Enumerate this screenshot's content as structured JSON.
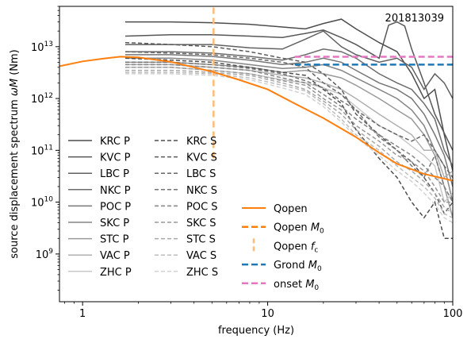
{
  "chart_data": {
    "type": "line",
    "annotation": "201813039",
    "xlabel": "frequency (Hz)",
    "ylabel_main": "source displacement spectrum ",
    "ylabel_omega": "ω",
    "ylabel_M": "M",
    "ylabel_unit": " (Nm)",
    "xscale": "log",
    "yscale": "log",
    "xlim": [
      0.75,
      100
    ],
    "ylim": [
      120000000.0,
      60000000000000.0
    ],
    "xticks": [
      {
        "value": 1,
        "label": "1"
      },
      {
        "value": 10,
        "label": "10"
      },
      {
        "value": 100,
        "label": "100"
      }
    ],
    "yticks": [
      {
        "value": 1000000000.0,
        "base": "10",
        "exp": "9"
      },
      {
        "value": 10000000000.0,
        "base": "10",
        "exp": "10"
      },
      {
        "value": 100000000000.0,
        "base": "10",
        "exp": "11"
      },
      {
        "value": 1000000000000.0,
        "base": "10",
        "exp": "12"
      },
      {
        "value": 10000000000000.0,
        "base": "10",
        "exp": "13"
      }
    ],
    "station_series": [
      {
        "name": "KRC P",
        "color": "#4d4d4d",
        "dash": false,
        "x": [
          1.7,
          3,
          5,
          8,
          12,
          16,
          20,
          25,
          30,
          40,
          50,
          60,
          70,
          80,
          90,
          100
        ],
        "y": [
          30000000000000.0,
          30000000000000.0,
          29000000000000.0,
          27000000000000.0,
          24000000000000.0,
          22000000000000.0,
          28000000000000.0,
          34000000000000.0,
          22000000000000.0,
          12000000000000.0,
          8000000000000.0,
          3000000000000.0,
          1000000000000.0,
          1500000000000.0,
          200000000000.0,
          40000000000.0
        ]
      },
      {
        "name": "KVC P",
        "color": "#575757",
        "dash": false,
        "x": [
          1.7,
          3,
          5,
          8,
          12,
          16,
          20,
          25,
          30,
          40,
          45,
          50,
          55,
          60,
          70,
          80,
          100
        ],
        "y": [
          16000000000000.0,
          17000000000000.0,
          17000000000000.0,
          16000000000000.0,
          15000000000000.0,
          18000000000000.0,
          21000000000000.0,
          15000000000000.0,
          11000000000000.0,
          6000000000000.0,
          26000000000000.0,
          30000000000000.0,
          25000000000000.0,
          9000000000000.0,
          2000000000000.0,
          500000000000.0,
          100000000000.0
        ]
      },
      {
        "name": "LBC P",
        "color": "#616161",
        "dash": false,
        "x": [
          1.7,
          3,
          5,
          8,
          12,
          16,
          20,
          25,
          30,
          40,
          50,
          60,
          70,
          80,
          90,
          100
        ],
        "y": [
          11000000000000.0,
          11000000000000.0,
          11000000000000.0,
          9500000000000.0,
          9000000000000.0,
          14000000000000.0,
          20000000000000.0,
          10000000000000.0,
          7000000000000.0,
          5000000000000.0,
          6000000000000.0,
          4000000000000.0,
          1500000000000.0,
          3000000000000.0,
          2000000000000.0,
          1000000000000.0
        ]
      },
      {
        "name": "NKC P",
        "color": "#6c6c6c",
        "dash": false,
        "x": [
          1.7,
          3,
          5,
          8,
          12,
          16,
          20,
          25,
          30,
          40,
          50,
          60,
          70,
          80,
          90,
          100
        ],
        "y": [
          8000000000000.0,
          8000000000000.0,
          7500000000000.0,
          6500000000000.0,
          5500000000000.0,
          7000000000000.0,
          9000000000000.0,
          8000000000000.0,
          6000000000000.0,
          3000000000000.0,
          2000000000000.0,
          1500000000000.0,
          800000000000.0,
          400000000000.0,
          100000000000.0,
          50000000000.0
        ]
      },
      {
        "name": "POC P",
        "color": "#767676",
        "dash": false,
        "x": [
          1.7,
          3,
          5,
          8,
          12,
          16,
          20,
          25,
          30,
          40,
          50,
          60,
          70,
          80,
          90,
          100
        ],
        "y": [
          7000000000000.0,
          7000000000000.0,
          6500000000000.0,
          5500000000000.0,
          4500000000000.0,
          5000000000000.0,
          6000000000000.0,
          5000000000000.0,
          3500000000000.0,
          2000000000000.0,
          1500000000000.0,
          1000000000000.0,
          500000000000.0,
          200000000000.0,
          80000000000.0,
          20000000000.0
        ]
      },
      {
        "name": "SKC P",
        "color": "#858585",
        "dash": false,
        "x": [
          1.7,
          3,
          5,
          8,
          12,
          16,
          20,
          25,
          30,
          40,
          50,
          60,
          70,
          80,
          90,
          100
        ],
        "y": [
          6000000000000.0,
          6000000000000.0,
          5500000000000.0,
          4500000000000.0,
          3800000000000.0,
          4000000000000.0,
          4500000000000.0,
          3500000000000.0,
          2500000000000.0,
          1500000000000.0,
          1000000000000.0,
          600000000000.0,
          300000000000.0,
          100000000000.0,
          50000000000.0,
          10000000000.0
        ]
      },
      {
        "name": "STC P",
        "color": "#9a9a9a",
        "dash": false,
        "x": [
          1.7,
          3,
          5,
          8,
          12,
          16,
          20,
          25,
          30,
          40,
          50,
          60,
          70,
          80,
          90,
          100
        ],
        "y": [
          5000000000000.0,
          5000000000000.0,
          4500000000000.0,
          4000000000000.0,
          3200000000000.0,
          3500000000000.0,
          3000000000000.0,
          2500000000000.0,
          1800000000000.0,
          1000000000000.0,
          600000000000.0,
          400000000000.0,
          200000000000.0,
          80000000000.0,
          20000000000.0,
          5000000000.0
        ]
      },
      {
        "name": "VAC P",
        "color": "#b0b0b0",
        "dash": false,
        "x": [
          1.7,
          3,
          5,
          8,
          12,
          16,
          20,
          25,
          30,
          40,
          50,
          60,
          70,
          80,
          90,
          100
        ],
        "y": [
          4500000000000.0,
          4500000000000.0,
          4000000000000.0,
          3500000000000.0,
          2800000000000.0,
          2500000000000.0,
          2000000000000.0,
          1500000000000.0,
          1000000000000.0,
          500000000000.0,
          300000000000.0,
          200000000000.0,
          100000000000.0,
          100000000000.0,
          30000000000.0,
          40000000000.0
        ]
      },
      {
        "name": "ZHC P",
        "color": "#c8c8c8",
        "dash": false,
        "x": [
          1.7,
          3,
          5,
          8,
          12,
          16,
          20,
          25,
          30,
          40,
          50,
          60,
          70,
          80,
          90,
          100
        ],
        "y": [
          4000000000000.0,
          4000000000000.0,
          3500000000000.0,
          3000000000000.0,
          2300000000000.0,
          2000000000000.0,
          1600000000000.0,
          1200000000000.0,
          700000000000.0,
          300000000000.0,
          200000000000.0,
          120000000000.0,
          80000000000.0,
          50000000000.0,
          10000000000.0,
          15000000000.0
        ]
      },
      {
        "name": "KRC S",
        "color": "#4d4d4d",
        "dash": true,
        "x": [
          1.7,
          3,
          5,
          8,
          12,
          16,
          20,
          25,
          30,
          40,
          50,
          60,
          70,
          80,
          90,
          100
        ],
        "y": [
          6000000000000.0,
          5500000000000.0,
          5000000000000.0,
          4000000000000.0,
          3200000000000.0,
          2800000000000.0,
          1500000000000.0,
          800000000000.0,
          250000000000.0,
          70000000000.0,
          30000000000.0,
          10000000000.0,
          5000000000.0,
          10000000000.0,
          2000000000.0,
          2000000000.0
        ]
      },
      {
        "name": "KVC S",
        "color": "#5a5a5a",
        "dash": true,
        "x": [
          1.7,
          3,
          5,
          8,
          12,
          16,
          20,
          25,
          30,
          40,
          50,
          60,
          70,
          80,
          90,
          100
        ],
        "y": [
          12000000000000.0,
          11000000000000.0,
          10000000000000.0,
          8000000000000.0,
          6000000000000.0,
          5000000000000.0,
          3000000000000.0,
          1500000000000.0,
          500000000000.0,
          200000000000.0,
          100000000000.0,
          60000000000.0,
          30000000000.0,
          15000000000.0,
          6000000000.0,
          10000000000.0
        ]
      },
      {
        "name": "LBC S",
        "color": "#666666",
        "dash": true,
        "x": [
          1.7,
          3,
          5,
          8,
          12,
          16,
          20,
          25,
          30,
          40,
          50,
          60,
          70,
          80,
          90,
          100
        ],
        "y": [
          8000000000000.0,
          7500000000000.0,
          7000000000000.0,
          6000000000000.0,
          5000000000000.0,
          4000000000000.0,
          2000000000000.0,
          1200000000000.0,
          600000000000.0,
          300000000000.0,
          200000000000.0,
          150000000000.0,
          200000000000.0,
          100000000000.0,
          50000000000.0,
          30000000000.0
        ]
      },
      {
        "name": "NKC S",
        "color": "#747474",
        "dash": true,
        "x": [
          1.7,
          3,
          5,
          8,
          12,
          16,
          20,
          25,
          30,
          40,
          50,
          60,
          70,
          80,
          90,
          100
        ],
        "y": [
          5000000000000.0,
          5000000000000.0,
          4500000000000.0,
          3800000000000.0,
          3000000000000.0,
          2200000000000.0,
          1600000000000.0,
          900000000000.0,
          600000000000.0,
          180000000000.0,
          100000000000.0,
          50000000000.0,
          30000000000.0,
          80000000000.0,
          20000000000.0,
          10000000000.0
        ]
      },
      {
        "name": "POC S",
        "color": "#848484",
        "dash": true,
        "x": [
          1.7,
          3,
          5,
          8,
          12,
          16,
          20,
          25,
          30,
          40,
          50,
          60,
          70,
          80,
          90,
          100
        ],
        "y": [
          4500000000000.0,
          4500000000000.0,
          4000000000000.0,
          3500000000000.0,
          2500000000000.0,
          2000000000000.0,
          1200000000000.0,
          700000000000.0,
          400000000000.0,
          200000000000.0,
          120000000000.0,
          80000000000.0,
          50000000000.0,
          30000000000.0,
          20000000000.0,
          10000000000.0
        ]
      },
      {
        "name": "SKC S",
        "color": "#979797",
        "dash": true,
        "x": [
          1.7,
          3,
          5,
          8,
          12,
          16,
          20,
          25,
          30,
          40,
          50,
          60,
          70,
          80,
          90,
          100
        ],
        "y": [
          4000000000000.0,
          4000000000000.0,
          3500000000000.0,
          3000000000000.0,
          2200000000000.0,
          1800000000000.0,
          1000000000000.0,
          600000000000.0,
          300000000000.0,
          150000000000.0,
          80000000000.0,
          60000000000.0,
          40000000000.0,
          20000000000.0,
          10000000000.0,
          10000000000.0
        ]
      },
      {
        "name": "STC S",
        "color": "#a8a8a8",
        "dash": true,
        "x": [
          1.7,
          3,
          5,
          8,
          12,
          16,
          20,
          25,
          30,
          40,
          50,
          60,
          70,
          80,
          90,
          100
        ],
        "y": [
          3500000000000.0,
          3500000000000.0,
          3200000000000.0,
          2800000000000.0,
          2000000000000.0,
          1500000000000.0,
          900000000000.0,
          500000000000.0,
          250000000000.0,
          120000000000.0,
          60000000000.0,
          40000000000.0,
          25000000000.0,
          15000000000.0,
          8000000000.0,
          6000000000.0
        ]
      },
      {
        "name": "VAC S",
        "color": "#bdbdbd",
        "dash": true,
        "x": [
          1.7,
          3,
          5,
          8,
          12,
          16,
          20,
          25,
          30,
          40,
          50,
          60,
          70,
          80,
          90,
          100
        ],
        "y": [
          3200000000000.0,
          3200000000000.0,
          3000000000000.0,
          2500000000000.0,
          1800000000000.0,
          1400000000000.0,
          800000000000.0,
          400000000000.0,
          200000000000.0,
          100000000000.0,
          50000000000.0,
          30000000000.0,
          20000000000.0,
          12000000000.0,
          6000000000.0,
          5000000000.0
        ]
      },
      {
        "name": "ZHC S",
        "color": "#d2d2d2",
        "dash": true,
        "x": [
          1.7,
          3,
          5,
          8,
          12,
          16,
          20,
          25,
          30,
          40,
          50,
          60,
          70,
          80,
          90,
          100
        ],
        "y": [
          3000000000000.0,
          3000000000000.0,
          2800000000000.0,
          2300000000000.0,
          1600000000000.0,
          1200000000000.0,
          700000000000.0,
          350000000000.0,
          180000000000.0,
          80000000000.0,
          40000000000.0,
          25000000000.0,
          15000000000.0,
          9000000000.0,
          5000000000.0,
          4000000000.0
        ]
      }
    ],
    "qopen": {
      "name": "Qopen",
      "color": "#ff7f0e",
      "x": [
        0.75,
        1,
        1.3,
        1.6,
        2,
        3,
        5,
        7,
        10,
        14,
        20,
        30,
        40,
        50,
        70,
        100
      ],
      "y": [
        4200000000000.0,
        5200000000000.0,
        5900000000000.0,
        6400000000000.0,
        6200000000000.0,
        5100000000000.0,
        3300000000000.0,
        2300000000000.0,
        1500000000000.0,
        800000000000.0,
        420000000000.0,
        180000000000.0,
        90000000000.0,
        55000000000.0,
        35000000000.0,
        26000000000.0
      ]
    },
    "qopen_m0": {
      "name": "Qopen M0",
      "name_text": "Qopen ",
      "name_italic": "M",
      "name_sub": "0",
      "color": "#ff7f0e"
    },
    "qopen_fc": {
      "name": "Qopen fc",
      "name_text": "Qopen ",
      "name_italic": "f",
      "name_sub": "c",
      "color": "#ffbb78",
      "x": 5.1,
      "y_from": 70000000000.0,
      "y_to": 60000000000000.0
    },
    "grond_m0": {
      "name": "Grond M0",
      "name_text": "Grond ",
      "name_italic": "M",
      "name_sub": "0",
      "color": "#1f77b4",
      "x": [
        14,
        100
      ],
      "y": 4500000000000.0
    },
    "onset_m0": {
      "name": "onset M0",
      "name_text": "onset ",
      "name_italic": "M",
      "name_sub": "0",
      "color": "#e377c2",
      "x": [
        14,
        100
      ],
      "y": 6400000000000.0
    },
    "legend_placement": [
      "lower-left",
      "lower-center"
    ],
    "grid": false
  }
}
